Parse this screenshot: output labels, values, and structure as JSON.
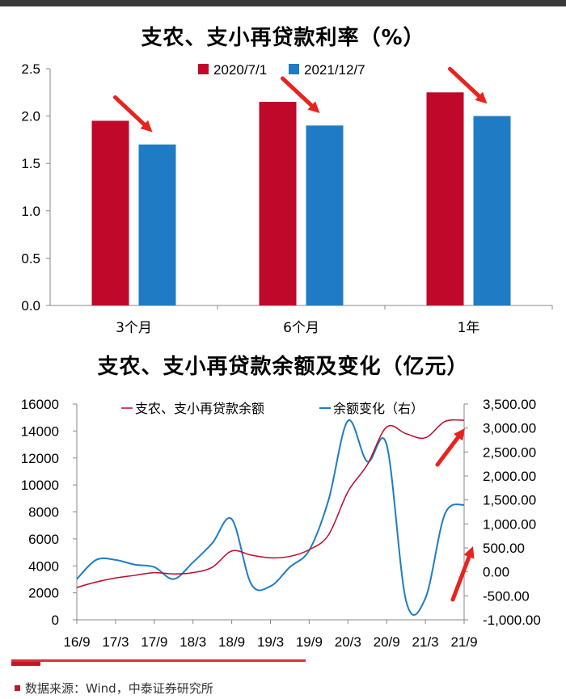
{
  "colors": {
    "red": "#c0082b",
    "blue": "#1f7cc4",
    "arrow": "#e8231f"
  },
  "source": "数据来源：Wind，中泰证券研究所",
  "chart_data": [
    {
      "type": "bar",
      "title": "支农、支小再贷款利率（%）",
      "categories": [
        "3个月",
        "6个月",
        "1年"
      ],
      "series": [
        {
          "name": "2020/7/1",
          "values": [
            1.95,
            2.15,
            2.25
          ]
        },
        {
          "name": "2021/12/7",
          "values": [
            1.7,
            1.9,
            2.0
          ]
        }
      ],
      "ylim": [
        0,
        2.5
      ],
      "yticks": [
        "0.0",
        "0.5",
        "1.0",
        "1.5",
        "2.0",
        "2.5"
      ],
      "legend": "top-center",
      "grid": false
    },
    {
      "type": "line",
      "title": "支农、支小再贷款余额及变化（亿元）",
      "x": [
        "16/9",
        "16/12",
        "17/3",
        "17/6",
        "17/9",
        "17/12",
        "18/3",
        "18/6",
        "18/9",
        "18/12",
        "19/3",
        "19/6",
        "19/9",
        "19/12",
        "20/3",
        "20/6",
        "20/9",
        "20/12",
        "21/3",
        "21/6",
        "21/9"
      ],
      "xticks": [
        "16/9",
        "17/3",
        "17/9",
        "18/3",
        "18/9",
        "19/3",
        "19/9",
        "20/3",
        "20/9",
        "21/3",
        "21/9"
      ],
      "ylim_left": [
        0,
        16000
      ],
      "yticks_left": [
        "0",
        "2000",
        "4000",
        "6000",
        "8000",
        "10000",
        "12000",
        "14000",
        "16000"
      ],
      "ylim_right": [
        -1000,
        3500
      ],
      "yticks_right": [
        "-1,000.00",
        "-500.00",
        "0.00",
        "500.00",
        "1,000.00",
        "1,500.00",
        "2,000.00",
        "2,500.00",
        "3,000.00",
        "3,500.00"
      ],
      "series": [
        {
          "name": "支农、支小再贷款余额",
          "axis": "left",
          "values": [
            2400,
            2800,
            3100,
            3300,
            3500,
            3400,
            3500,
            3900,
            5100,
            4800,
            4600,
            4700,
            5200,
            6300,
            9500,
            11500,
            14300,
            13800,
            13500,
            14700,
            14800
          ]
        },
        {
          "name": "余额变化（右）",
          "axis": "right",
          "values": [
            -150,
            250,
            250,
            150,
            100,
            -150,
            200,
            600,
            1100,
            -250,
            -300,
            100,
            450,
            1500,
            3150,
            2300,
            2650,
            -600,
            -550,
            1200,
            1400
          ]
        }
      ],
      "legend": "top-center",
      "grid": false
    }
  ]
}
